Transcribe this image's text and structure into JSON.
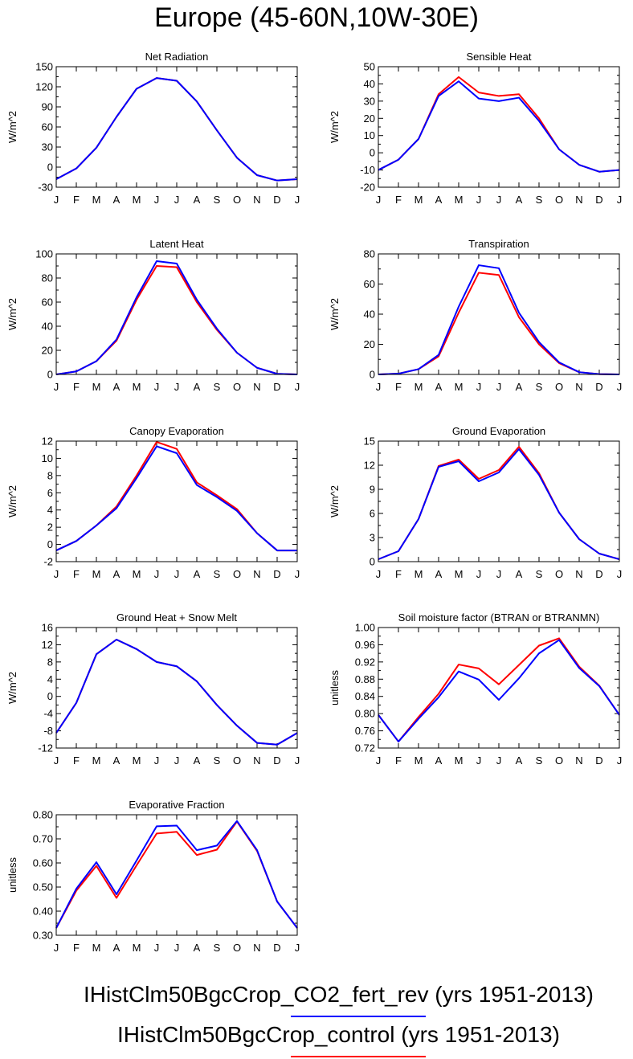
{
  "figure": {
    "title": "Europe (45-60N,10W-30E)",
    "legend": [
      {
        "label": "IHistClm50BgcCrop_CO2_fert_rev (yrs 1951-2013)",
        "color": "#0000ff"
      },
      {
        "label": "IHistClm50BgcCrop_control (yrs 1951-2013)",
        "color": "#ff0000"
      }
    ]
  },
  "chart_data": [
    {
      "type": "line",
      "title": "Net Radiation",
      "ylabel": "W/m^2",
      "categories": [
        "J",
        "F",
        "M",
        "A",
        "M",
        "J",
        "J",
        "A",
        "S",
        "O",
        "N",
        "D",
        "J"
      ],
      "ylim": [
        -30,
        150
      ],
      "yticks": [
        -30,
        0,
        30,
        60,
        90,
        120,
        150
      ],
      "ytick_labels": [
        "-30",
        "0",
        "30",
        "60",
        "90",
        "120",
        "150"
      ],
      "series": [
        {
          "color": "#ff0000",
          "values": [
            -18,
            -2,
            29,
            75,
            117,
            133,
            129,
            98,
            55,
            14,
            -12,
            -20,
            -18
          ]
        },
        {
          "color": "#0000ff",
          "values": [
            -18,
            -2,
            29,
            75,
            117,
            133,
            129,
            98,
            55,
            14,
            -12,
            -20,
            -18
          ]
        }
      ]
    },
    {
      "type": "line",
      "title": "Sensible Heat",
      "ylabel": "W/m^2",
      "categories": [
        "J",
        "F",
        "M",
        "A",
        "M",
        "J",
        "J",
        "A",
        "S",
        "O",
        "N",
        "D",
        "J"
      ],
      "ylim": [
        -20,
        50
      ],
      "yticks": [
        -20,
        -10,
        0,
        10,
        20,
        30,
        40,
        50
      ],
      "ytick_labels": [
        "-20",
        "-10",
        "0",
        "10",
        "20",
        "30",
        "40",
        "50"
      ],
      "series": [
        {
          "color": "#ff0000",
          "values": [
            -10,
            -4,
            8,
            34,
            44,
            35,
            33,
            34,
            20,
            2,
            -7,
            -11,
            -10
          ]
        },
        {
          "color": "#0000ff",
          "values": [
            -10,
            -4,
            8,
            33,
            41.5,
            31.5,
            30,
            32,
            18.5,
            2,
            -7,
            -11,
            -10
          ]
        }
      ]
    },
    {
      "type": "line",
      "title": "Latent Heat",
      "ylabel": "W/m^2",
      "categories": [
        "J",
        "F",
        "M",
        "A",
        "M",
        "J",
        "J",
        "A",
        "S",
        "O",
        "N",
        "D",
        "J"
      ],
      "ylim": [
        0,
        100
      ],
      "yticks": [
        0,
        20,
        40,
        60,
        80,
        100
      ],
      "ytick_labels": [
        "0",
        "20",
        "40",
        "60",
        "80",
        "100"
      ],
      "series": [
        {
          "color": "#ff0000",
          "values": [
            0,
            2.5,
            11,
            28,
            62,
            90,
            89,
            60,
            37,
            18,
            5.5,
            0.5,
            0
          ]
        },
        {
          "color": "#0000ff",
          "values": [
            0,
            2.5,
            11,
            29,
            64,
            94,
            92,
            62,
            38,
            18,
            5.5,
            0.5,
            0
          ]
        }
      ]
    },
    {
      "type": "line",
      "title": "Transpiration",
      "ylabel": "W/m^2",
      "categories": [
        "J",
        "F",
        "M",
        "A",
        "M",
        "J",
        "J",
        "A",
        "S",
        "O",
        "N",
        "D",
        "J"
      ],
      "ylim": [
        0,
        80
      ],
      "yticks": [
        0,
        20,
        40,
        60,
        80
      ],
      "ytick_labels": [
        "0",
        "20",
        "40",
        "60",
        "80"
      ],
      "series": [
        {
          "color": "#ff0000",
          "values": [
            0,
            0.5,
            3.5,
            12,
            41,
            67.5,
            66,
            38,
            20,
            7.5,
            1.5,
            0.2,
            0
          ]
        },
        {
          "color": "#0000ff",
          "values": [
            0,
            0.5,
            3.5,
            13,
            45,
            72.5,
            70.5,
            41,
            21.5,
            8,
            1.5,
            0.2,
            0
          ]
        }
      ]
    },
    {
      "type": "line",
      "title": "Canopy Evaporation",
      "ylabel": "W/m^2",
      "categories": [
        "J",
        "F",
        "M",
        "A",
        "M",
        "J",
        "J",
        "A",
        "S",
        "O",
        "N",
        "D",
        "J"
      ],
      "ylim": [
        -2,
        12
      ],
      "yticks": [
        -2,
        0,
        2,
        4,
        6,
        8,
        10,
        12
      ],
      "ytick_labels": [
        "-2",
        "0",
        "2",
        "4",
        "6",
        "8",
        "10",
        "12"
      ],
      "series": [
        {
          "color": "#ff0000",
          "values": [
            -0.7,
            0.4,
            2.2,
            4.4,
            8.0,
            11.9,
            11.1,
            7.2,
            5.7,
            4.1,
            1.3,
            -0.7,
            -0.7
          ]
        },
        {
          "color": "#0000ff",
          "values": [
            -0.7,
            0.4,
            2.2,
            4.2,
            7.7,
            11.4,
            10.6,
            6.9,
            5.5,
            3.9,
            1.3,
            -0.7,
            -0.7
          ]
        }
      ]
    },
    {
      "type": "line",
      "title": "Ground Evaporation",
      "ylabel": "W/m^2",
      "categories": [
        "J",
        "F",
        "M",
        "A",
        "M",
        "J",
        "J",
        "A",
        "S",
        "O",
        "N",
        "D",
        "J"
      ],
      "ylim": [
        0,
        15
      ],
      "yticks": [
        0,
        3,
        6,
        9,
        12,
        15
      ],
      "ytick_labels": [
        "0",
        "3",
        "6",
        "9",
        "12",
        "15"
      ],
      "series": [
        {
          "color": "#ff0000",
          "values": [
            0.3,
            1.3,
            5.3,
            11.9,
            12.7,
            10.3,
            11.4,
            14.3,
            11.0,
            6.1,
            2.8,
            1.0,
            0.3
          ]
        },
        {
          "color": "#0000ff",
          "values": [
            0.3,
            1.3,
            5.3,
            11.8,
            12.5,
            10.0,
            11.1,
            14.0,
            10.8,
            6.1,
            2.8,
            1.0,
            0.3
          ]
        }
      ]
    },
    {
      "type": "line",
      "title": "Ground Heat + Snow Melt",
      "ylabel": "W/m^2",
      "categories": [
        "J",
        "F",
        "M",
        "A",
        "M",
        "J",
        "J",
        "A",
        "S",
        "O",
        "N",
        "D",
        "J"
      ],
      "ylim": [
        -12,
        16
      ],
      "yticks": [
        -12,
        -8,
        -4,
        0,
        4,
        8,
        12,
        16
      ],
      "ytick_labels": [
        "-12",
        "-8",
        "-4",
        "0",
        "4",
        "8",
        "12",
        "16"
      ],
      "series": [
        {
          "color": "#ff0000",
          "values": [
            -8.5,
            -1.5,
            9.8,
            13.2,
            11.0,
            8.0,
            7.0,
            3.5,
            -2.0,
            -6.8,
            -10.8,
            -11.2,
            -8.5
          ]
        },
        {
          "color": "#0000ff",
          "values": [
            -8.5,
            -1.5,
            9.8,
            13.2,
            11.0,
            8.0,
            7.0,
            3.5,
            -2.0,
            -6.8,
            -10.8,
            -11.2,
            -8.5
          ]
        }
      ]
    },
    {
      "type": "line",
      "title": "Soil moisture factor (BTRAN or BTRANMN)",
      "ylabel": "unitless",
      "categories": [
        "J",
        "F",
        "M",
        "A",
        "M",
        "J",
        "J",
        "A",
        "S",
        "O",
        "N",
        "D",
        "J"
      ],
      "ylim": [
        0.72,
        1.0
      ],
      "yticks": [
        0.72,
        0.76,
        0.8,
        0.84,
        0.88,
        0.92,
        0.96,
        1.0
      ],
      "ytick_labels": [
        "0.72",
        "0.76",
        "0.80",
        "0.84",
        "0.88",
        "0.92",
        "0.96",
        "1.00"
      ],
      "series": [
        {
          "color": "#ff0000",
          "values": [
            0.797,
            0.735,
            0.792,
            0.846,
            0.914,
            0.905,
            0.868,
            0.913,
            0.958,
            0.975,
            0.909,
            0.865,
            0.797
          ]
        },
        {
          "color": "#0000ff",
          "values": [
            0.797,
            0.735,
            0.788,
            0.838,
            0.898,
            0.879,
            0.832,
            0.882,
            0.94,
            0.971,
            0.906,
            0.864,
            0.797
          ]
        }
      ]
    },
    {
      "type": "line",
      "title": "Evaporative Fraction",
      "ylabel": "unitless",
      "categories": [
        "J",
        "F",
        "M",
        "A",
        "M",
        "J",
        "J",
        "A",
        "S",
        "O",
        "N",
        "D",
        "J"
      ],
      "ylim": [
        0.3,
        0.8
      ],
      "yticks": [
        0.3,
        0.4,
        0.5,
        0.6,
        0.7,
        0.8
      ],
      "ytick_labels": [
        "0.30",
        "0.40",
        "0.50",
        "0.60",
        "0.70",
        "0.80"
      ],
      "series": [
        {
          "color": "#ff0000",
          "values": [
            0.33,
            0.485,
            0.588,
            0.455,
            0.59,
            0.722,
            0.729,
            0.633,
            0.655,
            0.772,
            0.65,
            0.44,
            0.33
          ]
        },
        {
          "color": "#0000ff",
          "values": [
            0.33,
            0.493,
            0.603,
            0.47,
            0.61,
            0.752,
            0.755,
            0.653,
            0.672,
            0.774,
            0.653,
            0.44,
            0.33
          ]
        }
      ]
    }
  ]
}
